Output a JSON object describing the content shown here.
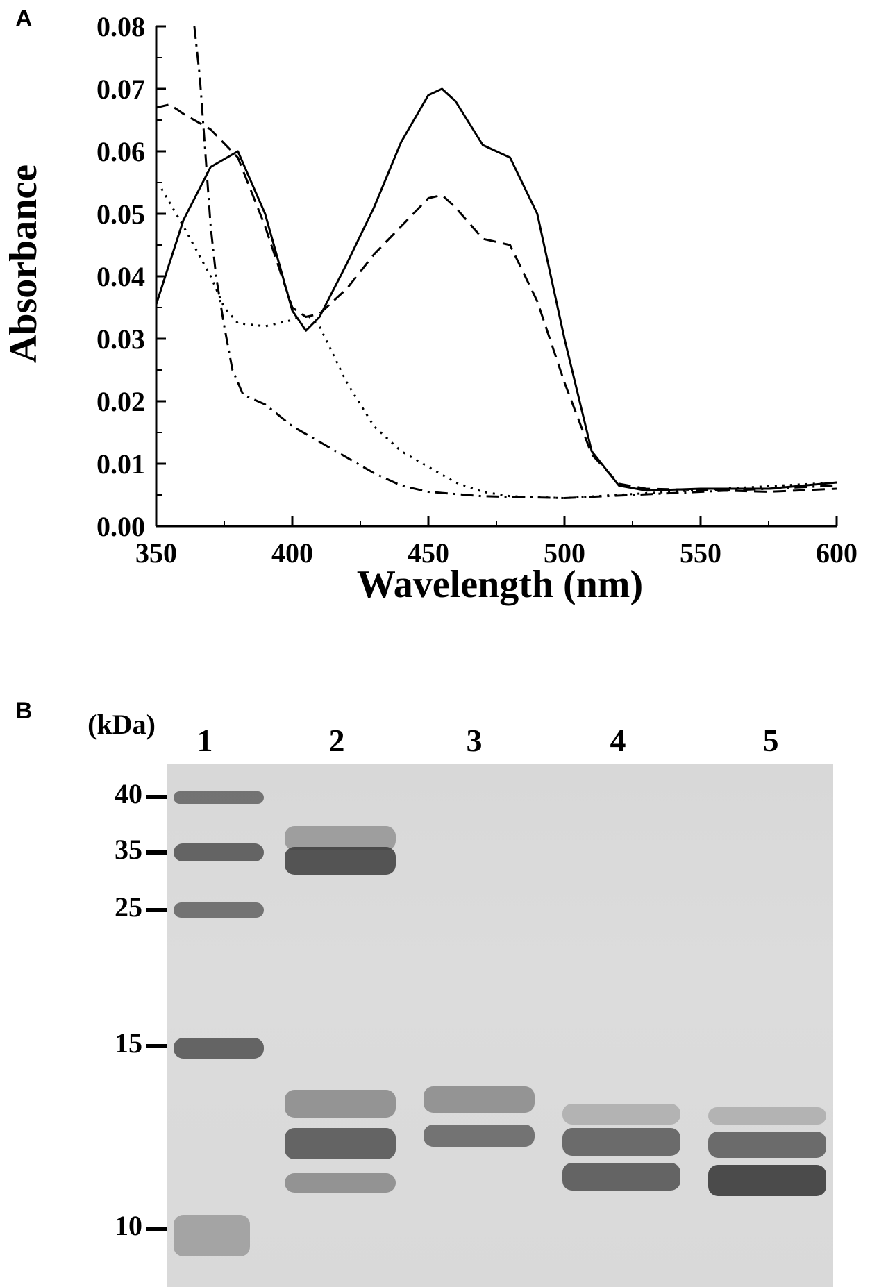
{
  "panel_a": {
    "label": "A",
    "chart_data": {
      "type": "line",
      "xlabel": "Wavelength (nm)",
      "ylabel": "Absorbance",
      "xlim": [
        350,
        600
      ],
      "ylim": [
        0.0,
        0.08
      ],
      "x_ticks": [
        "350",
        "400",
        "450",
        "500",
        "550",
        "600"
      ],
      "y_ticks": [
        "0.00",
        "0.01",
        "0.02",
        "0.03",
        "0.04",
        "0.05",
        "0.06",
        "0.07",
        "0.08"
      ],
      "grid": false,
      "series": [
        {
          "style": "solid",
          "x": [
            350,
            360,
            370,
            380,
            390,
            400,
            405,
            410,
            420,
            430,
            440,
            450,
            455,
            460,
            470,
            480,
            490,
            500,
            510,
            520,
            530,
            550,
            575,
            600
          ],
          "y": [
            0.0355,
            0.049,
            0.0575,
            0.06,
            0.05,
            0.0345,
            0.0313,
            0.0335,
            0.042,
            0.051,
            0.0615,
            0.069,
            0.07,
            0.068,
            0.061,
            0.059,
            0.05,
            0.03,
            0.012,
            0.0065,
            0.0057,
            0.006,
            0.006,
            0.007
          ]
        },
        {
          "style": "dashed",
          "x": [
            350,
            355,
            360,
            370,
            380,
            390,
            400,
            405,
            410,
            420,
            430,
            440,
            450,
            455,
            460,
            470,
            480,
            490,
            500,
            510,
            520,
            530,
            550,
            575,
            600
          ],
          "y": [
            0.067,
            0.0675,
            0.066,
            0.0635,
            0.059,
            0.048,
            0.035,
            0.0335,
            0.034,
            0.038,
            0.0435,
            0.048,
            0.0525,
            0.053,
            0.051,
            0.046,
            0.045,
            0.036,
            0.023,
            0.0115,
            0.0068,
            0.006,
            0.0058,
            0.0055,
            0.006
          ]
        },
        {
          "style": "dotted",
          "x": [
            352,
            360,
            370,
            375,
            380,
            390,
            400,
            405,
            410,
            420,
            430,
            440,
            450,
            460,
            470,
            480,
            500,
            550,
            600
          ],
          "y": [
            0.054,
            0.048,
            0.04,
            0.035,
            0.0325,
            0.032,
            0.033,
            0.034,
            0.032,
            0.023,
            0.016,
            0.012,
            0.0095,
            0.007,
            0.0055,
            0.0048,
            0.0045,
            0.0058,
            0.007
          ]
        },
        {
          "style": "dashdot",
          "x": [
            364,
            366,
            368,
            370,
            372,
            375,
            378,
            382,
            390,
            400,
            410,
            420,
            430,
            440,
            450,
            470,
            500,
            550,
            600
          ],
          "y": [
            0.08,
            0.072,
            0.06,
            0.048,
            0.04,
            0.032,
            0.025,
            0.021,
            0.0195,
            0.016,
            0.0135,
            0.011,
            0.0085,
            0.0065,
            0.0055,
            0.0048,
            0.0045,
            0.0055,
            0.0065
          ]
        }
      ]
    }
  },
  "panel_b": {
    "label": "B",
    "unit_label": "(kDa)",
    "lanes": [
      "1",
      "2",
      "3",
      "4",
      "5"
    ],
    "markers": [
      {
        "label": "40",
        "kda": 40
      },
      {
        "label": "35",
        "kda": 35
      },
      {
        "label": "25",
        "kda": 25
      },
      {
        "label": "15",
        "kda": 15
      },
      {
        "label": "10",
        "kda": 10
      }
    ]
  }
}
